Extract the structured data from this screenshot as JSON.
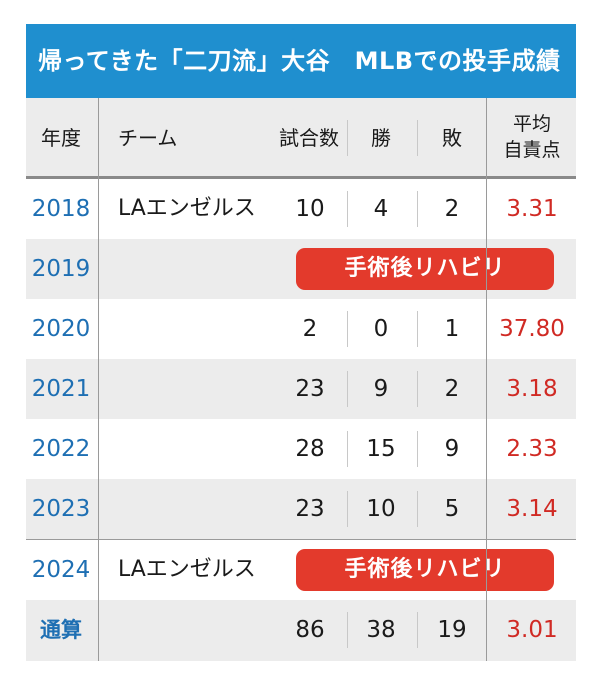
{
  "title": "帰ってきた「二刀流」大谷　MLBでの投手成績",
  "headers": {
    "year": "年度",
    "team": "チーム",
    "games": "試合数",
    "wins": "勝",
    "losses": "敗",
    "era_line1": "平均",
    "era_line2": "自責点"
  },
  "rows": [
    {
      "year": "2018",
      "team": "LAエンゼルス",
      "games": "10",
      "wins": "4",
      "losses": "2",
      "era": "3.31"
    },
    {
      "year": "2019",
      "note": "手術後リハビリ"
    },
    {
      "year": "2020",
      "games": "2",
      "wins": "0",
      "losses": "1",
      "era": "37.80"
    },
    {
      "year": "2021",
      "games": "23",
      "wins": "9",
      "losses": "2",
      "era": "3.18"
    },
    {
      "year": "2022",
      "games": "28",
      "wins": "15",
      "losses": "9",
      "era": "2.33"
    },
    {
      "year": "2023",
      "games": "23",
      "wins": "10",
      "losses": "5",
      "era": "3.14"
    },
    {
      "year": "2024",
      "team": "LAエンゼルス",
      "note": "手術後リハビリ"
    }
  ],
  "total": {
    "label": "通算",
    "games": "86",
    "wins": "38",
    "losses": "19",
    "era": "3.01"
  },
  "colors": {
    "title_bg": "#1f8fcf",
    "year_text": "#1e6fb3",
    "era_text": "#d02a24",
    "pill_bg": "#e33a2c"
  }
}
